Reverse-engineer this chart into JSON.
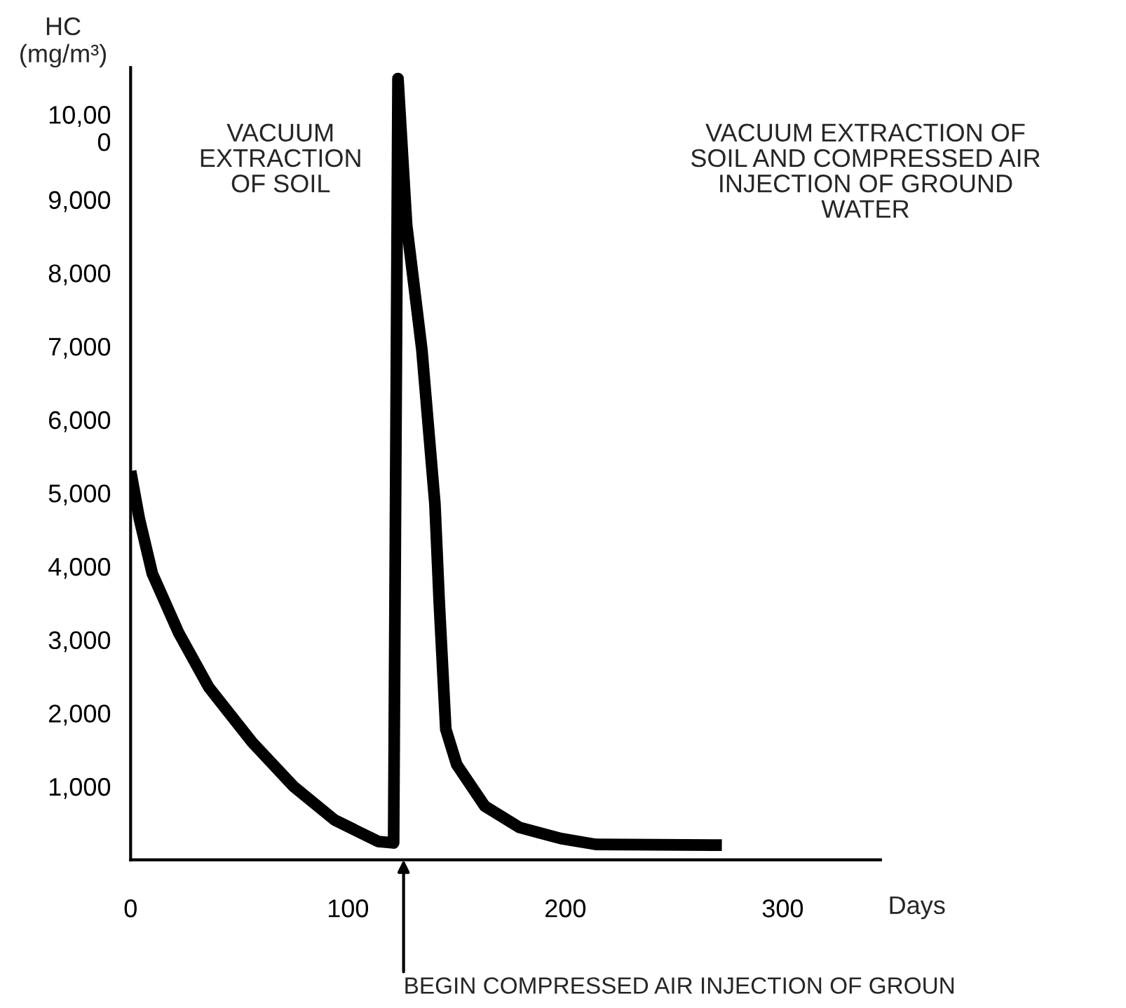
{
  "chart_data": {
    "type": "line",
    "xlabel": "Days",
    "ylabel": "HC\n(mg/m³)",
    "x": [
      0,
      4,
      10,
      22,
      36,
      56,
      75,
      94,
      114,
      121,
      123,
      127,
      134,
      140,
      142,
      145,
      150,
      163,
      179,
      198,
      214,
      272
    ],
    "series": [
      {
        "color": "#000000",
        "values": [
          5300,
          4650,
          3900,
          3100,
          2350,
          1600,
          1000,
          540,
          250,
          230,
          10650,
          8650,
          6950,
          4850,
          3500,
          1780,
          1300,
          730,
          440,
          290,
          210,
          200
        ]
      }
    ],
    "xlim": [
      0,
      345
    ],
    "ylim": [
      0,
      10800
    ],
    "xticks": [
      0,
      100,
      200,
      300
    ],
    "yticks": [
      {
        "value": 1000,
        "label": "1,000"
      },
      {
        "value": 2000,
        "label": "2,000"
      },
      {
        "value": 3000,
        "label": "3,000"
      },
      {
        "value": 4000,
        "label": "4,000"
      },
      {
        "value": 5000,
        "label": "5,000"
      },
      {
        "value": 6000,
        "label": "6,000"
      },
      {
        "value": 7000,
        "label": "7,000"
      },
      {
        "value": 8000,
        "label": "8,000"
      },
      {
        "value": 9000,
        "label": "9,000"
      },
      {
        "value": 10000,
        "label": "10,00\n0"
      }
    ],
    "annotations": [
      "VACUUM\nEXTRACTION\nOF SOIL",
      "VACUUM EXTRACTION OF\nSOIL AND COMPRESSED AIR\nINJECTION OF GROUND\nWATER",
      "BEGIN COMPRESSED AIR INJECTION OF GROUN"
    ],
    "grid": false,
    "legend": false,
    "marker": "none",
    "line_style": "solid"
  }
}
